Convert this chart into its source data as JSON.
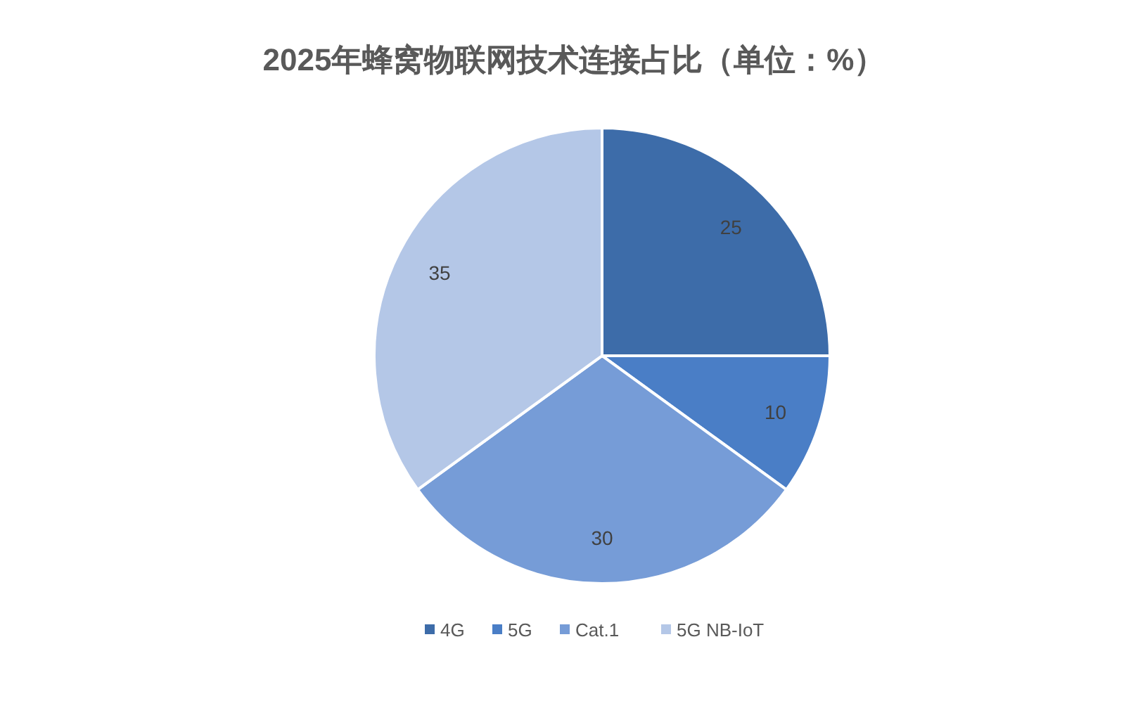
{
  "chart_data": {
    "type": "pie",
    "title": "2025年蜂窝物联网技术连接占比（单位：%）",
    "categories": [
      "4G",
      "5G",
      "Cat.1",
      "5G NB-IoT"
    ],
    "values": [
      25,
      10,
      30,
      35
    ],
    "colors": [
      "#3d6ca9",
      "#4a7ec6",
      "#769cd7",
      "#b4c7e7"
    ],
    "data_labels": true,
    "legend": "bottom"
  }
}
